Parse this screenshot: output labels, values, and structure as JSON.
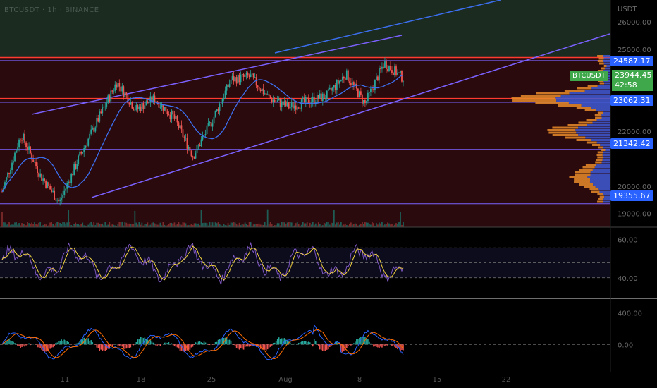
{
  "header": {
    "symbol_title": "BTCUSDT · 1h · BINANCE"
  },
  "price_axis": {
    "unit": "USDT",
    "ticks": [
      "26000.00",
      "25000.00",
      "22000.00",
      "20000.00",
      "19000.00"
    ],
    "tick_values": [
      26000,
      25000,
      22000,
      20000,
      19000
    ]
  },
  "tags": {
    "level_1": "24587.17",
    "symbol": "BTCUSDT",
    "current_price": "23944.45",
    "countdown": "42:58",
    "level_2": "23062.31",
    "level_3": "21342.42",
    "level_4": "19355.67"
  },
  "rsi_axis": {
    "ticks": [
      "60.00",
      "40.00"
    ]
  },
  "macd_axis": {
    "ticks": [
      "400.00",
      "0.00"
    ]
  },
  "time_axis": {
    "labels": [
      "11",
      "18",
      "25",
      "Aug",
      "8",
      "15",
      "22"
    ]
  },
  "colors": {
    "up": "#26a69a",
    "down": "#ef5350",
    "channel": "#7b61ff",
    "ma": "#3c6ff0",
    "resistance": "#ff3b30",
    "bg_bull": "#1b2b20",
    "bg_bear": "#2a0a0c",
    "rsi": "#7e57c2",
    "rsi_signal": "#f2d23f",
    "macd": "#2962ff",
    "signal": "#ff6d00",
    "vp_orange": "#e88b2a",
    "vp_blue": "#3e5bd6"
  },
  "chart_data": [
    {
      "type": "candlestick",
      "title": "BTCUSDT 1h",
      "ylim": [
        18500,
        26800
      ],
      "close_path": [
        {
          "x": "Jul 5",
          "y": 19800
        },
        {
          "x": "Jul 7",
          "y": 21900
        },
        {
          "x": "Jul 10",
          "y": 20400
        },
        {
          "x": "Jul 13",
          "y": 19400
        },
        {
          "x": "Jul 15",
          "y": 21000
        },
        {
          "x": "Jul 18",
          "y": 22400
        },
        {
          "x": "Jul 20",
          "y": 23800
        },
        {
          "x": "Jul 21",
          "y": 22800
        },
        {
          "x": "Jul 22",
          "y": 23200
        },
        {
          "x": "Jul 24",
          "y": 22500
        },
        {
          "x": "Jul 26",
          "y": 21100
        },
        {
          "x": "Jul 27",
          "y": 22400
        },
        {
          "x": "Jul 29",
          "y": 23900
        },
        {
          "x": "Jul 30",
          "y": 24000
        },
        {
          "x": "Aug 1",
          "y": 23200
        },
        {
          "x": "Aug 3",
          "y": 22900
        },
        {
          "x": "Aug 5",
          "y": 23100
        },
        {
          "x": "Aug 6",
          "y": 23300
        },
        {
          "x": "Aug 7",
          "y": 24100
        },
        {
          "x": "Aug 8",
          "y": 23000
        },
        {
          "x": "Aug 10",
          "y": 24500
        },
        {
          "x": "Aug 10",
          "y": 23944.45
        }
      ],
      "horizontal_levels": [
        24587.17,
        23062.31,
        21342.42,
        19355.67
      ],
      "resistance_levels": [
        24700,
        23200
      ]
    },
    {
      "type": "line",
      "title": "RSI",
      "ylim": [
        30,
        70
      ],
      "bands": [
        60,
        50,
        40
      ]
    },
    {
      "type": "bar",
      "title": "MACD",
      "ylim": [
        -300,
        500
      ],
      "zero": 0
    }
  ]
}
